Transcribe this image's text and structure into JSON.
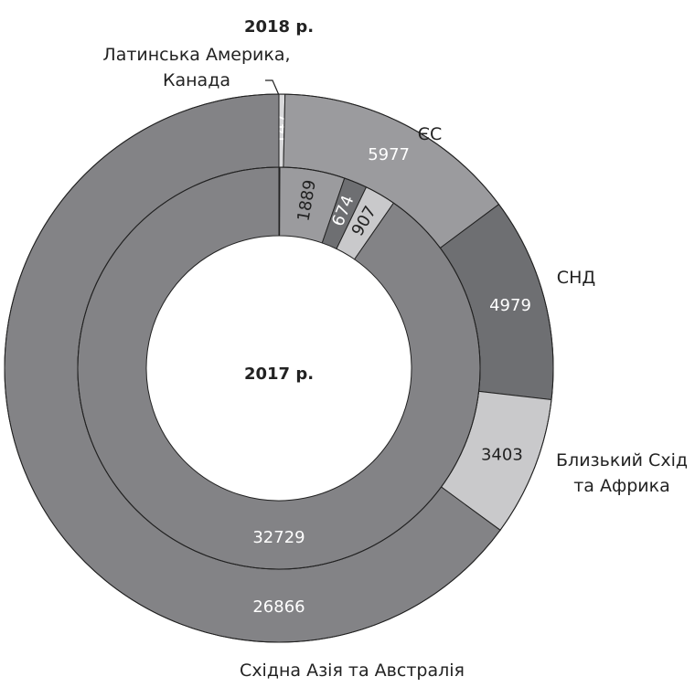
{
  "chart_data": {
    "type": "donut",
    "categories": [
      "Латинська Америка, Канада",
      "ЄС",
      "СНД",
      "Близький Схід та Африка",
      "Східна Азія та Австралія"
    ],
    "colors": [
      "#d9d9db",
      "#9b9b9e",
      "#6e6f72",
      "#c9c9cb",
      "#838386"
    ],
    "series": [
      {
        "name": "2018 р.",
        "values": [
          147,
          5977,
          4979,
          3403,
          26866
        ]
      },
      {
        "name": "2017 р.",
        "values": [
          27,
          1889,
          674,
          907,
          32729
        ]
      }
    ]
  }
}
